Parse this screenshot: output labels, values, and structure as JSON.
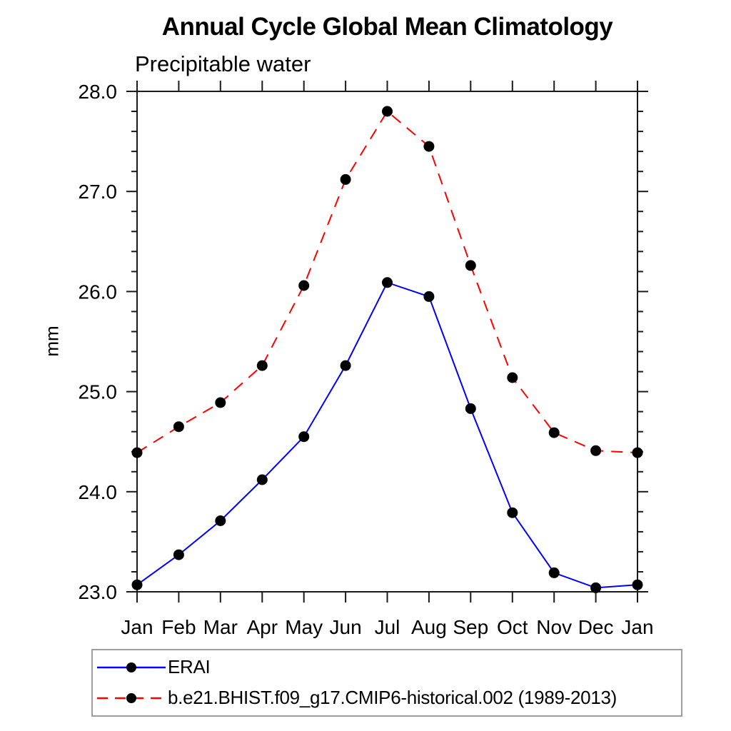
{
  "chart_data": {
    "type": "line",
    "title": "Annual Cycle Global Mean Climatology",
    "subtitle": "Precipitable water",
    "ylabel": "mm",
    "xlabel": "",
    "categories": [
      "Jan",
      "Feb",
      "Mar",
      "Apr",
      "May",
      "Jun",
      "Jul",
      "Aug",
      "Sep",
      "Oct",
      "Nov",
      "Dec",
      "Jan"
    ],
    "ylim": [
      23.0,
      28.0
    ],
    "ytick_labels": [
      "23.0",
      "24.0",
      "25.0",
      "26.0",
      "27.0",
      "28.0"
    ],
    "ytick_major_values": [
      23.0,
      24.0,
      25.0,
      26.0,
      27.0,
      28.0
    ],
    "ytick_minor_step": 0.2,
    "grid": false,
    "legend_position": "bottom",
    "axis_color": "#1a1a1a",
    "marker_shape": "circle",
    "series": [
      {
        "name": "ERAI",
        "color": "#0000ff",
        "line_style": "solid",
        "marker_color": "#000000",
        "values": [
          23.07,
          23.37,
          23.71,
          24.12,
          24.55,
          25.26,
          26.09,
          25.95,
          24.83,
          23.79,
          23.19,
          23.04,
          23.07
        ]
      },
      {
        "name": "b.e21.BHIST.f09_g17.CMIP6-historical.002 (1989-2013)",
        "color": "#ff0000",
        "line_style": "dashed",
        "marker_color": "#000000",
        "values": [
          24.39,
          24.65,
          24.89,
          25.26,
          26.06,
          27.12,
          27.8,
          27.45,
          26.26,
          25.14,
          24.59,
          24.41,
          24.39
        ]
      }
    ]
  }
}
